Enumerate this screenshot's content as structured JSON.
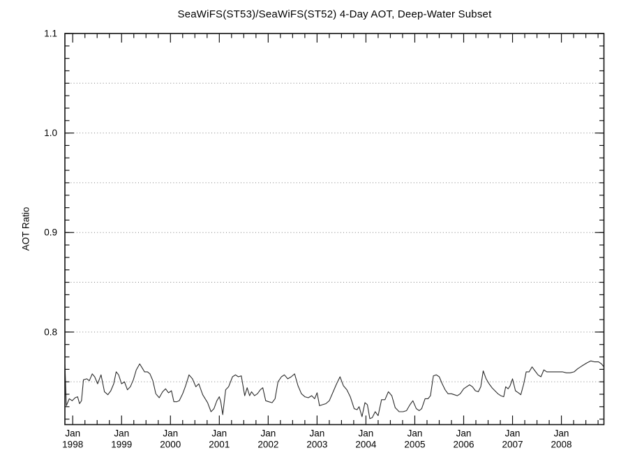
{
  "page": {
    "background": "#ffffff"
  },
  "chart_data": {
    "type": "line",
    "title": "SeaWiFS(ST53)/SeaWiFS(ST52) 4-Day AOT, Deep-Water Subset",
    "xlabel": "",
    "ylabel": "AOT Ratio",
    "xlim": [
      1997.84,
      2008.87
    ],
    "ylim": [
      0.707,
      1.1
    ],
    "legend": "none",
    "grid_style": "dotted",
    "gridlines": [
      0.75,
      0.8,
      0.85,
      0.9,
      0.95,
      1.0,
      1.05
    ],
    "y_major_ticks": [
      {
        "v": 0.8,
        "label": "0.8"
      },
      {
        "v": 0.9,
        "label": "0.9"
      },
      {
        "v": 1.0,
        "label": "1.0"
      },
      {
        "v": 1.1,
        "label": "1.1"
      }
    ],
    "y_minor_step": 0.0125,
    "x_major_ticks": [
      {
        "t": 1998,
        "line1": "Jan",
        "line2": "1998"
      },
      {
        "t": 1999,
        "line1": "Jan",
        "line2": "1999"
      },
      {
        "t": 2000,
        "line1": "Jan",
        "line2": "2000"
      },
      {
        "t": 2001,
        "line1": "Jan",
        "line2": "2001"
      },
      {
        "t": 2002,
        "line1": "Jan",
        "line2": "2002"
      },
      {
        "t": 2003,
        "line1": "Jan",
        "line2": "2003"
      },
      {
        "t": 2004,
        "line1": "Jan",
        "line2": "2004"
      },
      {
        "t": 2005,
        "line1": "Jan",
        "line2": "2005"
      },
      {
        "t": 2006,
        "line1": "Jan",
        "line2": "2006"
      },
      {
        "t": 2007,
        "line1": "Jan",
        "line2": "2007"
      },
      {
        "t": 2008,
        "line1": "Jan",
        "line2": "2008"
      }
    ],
    "x_minor_step": 0.25,
    "colors": {
      "line": "#2b2b2b",
      "axis": "#111111",
      "grid": "#7f7f7f",
      "text": "#000000",
      "background": "#ffffff"
    },
    "series": [
      {
        "name": "SeaWiFS(ST53)/SeaWiFS(ST52) 4-day AOT ratio, deep-water subset",
        "points": [
          [
            1997.84,
            0.768
          ],
          [
            1997.87,
            0.726
          ],
          [
            1997.93,
            0.733
          ],
          [
            1997.99,
            0.731
          ],
          [
            1998.05,
            0.734
          ],
          [
            1998.1,
            0.735
          ],
          [
            1998.14,
            0.728
          ],
          [
            1998.18,
            0.731
          ],
          [
            1998.22,
            0.752
          ],
          [
            1998.29,
            0.753
          ],
          [
            1998.34,
            0.751
          ],
          [
            1998.4,
            0.758
          ],
          [
            1998.45,
            0.755
          ],
          [
            1998.51,
            0.748
          ],
          [
            1998.58,
            0.757
          ],
          [
            1998.65,
            0.74
          ],
          [
            1998.72,
            0.737
          ],
          [
            1998.78,
            0.741
          ],
          [
            1998.84,
            0.748
          ],
          [
            1998.89,
            0.76
          ],
          [
            1998.94,
            0.757
          ],
          [
            1999.0,
            0.748
          ],
          [
            1999.06,
            0.75
          ],
          [
            1999.12,
            0.742
          ],
          [
            1999.18,
            0.745
          ],
          [
            1999.24,
            0.752
          ],
          [
            1999.3,
            0.762
          ],
          [
            1999.37,
            0.768
          ],
          [
            1999.42,
            0.764
          ],
          [
            1999.47,
            0.76
          ],
          [
            1999.53,
            0.76
          ],
          [
            1999.58,
            0.758
          ],
          [
            1999.64,
            0.751
          ],
          [
            1999.7,
            0.738
          ],
          [
            1999.77,
            0.734
          ],
          [
            1999.84,
            0.74
          ],
          [
            1999.9,
            0.743
          ],
          [
            1999.96,
            0.739
          ],
          [
            2000.02,
            0.741
          ],
          [
            2000.07,
            0.73
          ],
          [
            2000.13,
            0.73
          ],
          [
            2000.18,
            0.731
          ],
          [
            2000.25,
            0.738
          ],
          [
            2000.31,
            0.746
          ],
          [
            2000.38,
            0.757
          ],
          [
            2000.45,
            0.753
          ],
          [
            2000.52,
            0.745
          ],
          [
            2000.58,
            0.748
          ],
          [
            2000.66,
            0.737
          ],
          [
            2000.76,
            0.729
          ],
          [
            2000.83,
            0.72
          ],
          [
            2000.89,
            0.723
          ],
          [
            2000.95,
            0.731
          ],
          [
            2001.0,
            0.735
          ],
          [
            2001.03,
            0.73
          ],
          [
            2001.07,
            0.717
          ],
          [
            2001.13,
            0.742
          ],
          [
            2001.19,
            0.745
          ],
          [
            2001.27,
            0.755
          ],
          [
            2001.33,
            0.757
          ],
          [
            2001.39,
            0.755
          ],
          [
            2001.45,
            0.756
          ],
          [
            2001.52,
            0.736
          ],
          [
            2001.57,
            0.744
          ],
          [
            2001.62,
            0.736
          ],
          [
            2001.66,
            0.74
          ],
          [
            2001.72,
            0.736
          ],
          [
            2001.78,
            0.738
          ],
          [
            2001.84,
            0.742
          ],
          [
            2001.89,
            0.744
          ],
          [
            2001.95,
            0.731
          ],
          [
            2002.01,
            0.73
          ],
          [
            2002.08,
            0.729
          ],
          [
            2002.14,
            0.733
          ],
          [
            2002.2,
            0.75
          ],
          [
            2002.27,
            0.755
          ],
          [
            2002.33,
            0.757
          ],
          [
            2002.4,
            0.753
          ],
          [
            2002.47,
            0.755
          ],
          [
            2002.54,
            0.758
          ],
          [
            2002.61,
            0.746
          ],
          [
            2002.68,
            0.738
          ],
          [
            2002.75,
            0.735
          ],
          [
            2002.82,
            0.734
          ],
          [
            2002.89,
            0.736
          ],
          [
            2002.95,
            0.733
          ],
          [
            2003.0,
            0.739
          ],
          [
            2003.05,
            0.726
          ],
          [
            2003.11,
            0.727
          ],
          [
            2003.18,
            0.728
          ],
          [
            2003.25,
            0.731
          ],
          [
            2003.33,
            0.74
          ],
          [
            2003.4,
            0.748
          ],
          [
            2003.47,
            0.755
          ],
          [
            2003.54,
            0.746
          ],
          [
            2003.61,
            0.742
          ],
          [
            2003.68,
            0.735
          ],
          [
            2003.76,
            0.723
          ],
          [
            2003.82,
            0.722
          ],
          [
            2003.86,
            0.725
          ],
          [
            2003.92,
            0.715
          ],
          [
            2003.98,
            0.729
          ],
          [
            2004.03,
            0.727
          ],
          [
            2004.08,
            0.713
          ],
          [
            2004.13,
            0.714
          ],
          [
            2004.19,
            0.72
          ],
          [
            2004.25,
            0.716
          ],
          [
            2004.32,
            0.732
          ],
          [
            2004.39,
            0.732
          ],
          [
            2004.46,
            0.74
          ],
          [
            2004.53,
            0.736
          ],
          [
            2004.6,
            0.724
          ],
          [
            2004.68,
            0.72
          ],
          [
            2004.76,
            0.72
          ],
          [
            2004.83,
            0.721
          ],
          [
            2004.9,
            0.727
          ],
          [
            2004.96,
            0.731
          ],
          [
            2005.03,
            0.723
          ],
          [
            2005.09,
            0.721
          ],
          [
            2005.14,
            0.723
          ],
          [
            2005.21,
            0.733
          ],
          [
            2005.27,
            0.733
          ],
          [
            2005.32,
            0.736
          ],
          [
            2005.38,
            0.756
          ],
          [
            2005.44,
            0.757
          ],
          [
            2005.5,
            0.755
          ],
          [
            2005.56,
            0.748
          ],
          [
            2005.62,
            0.742
          ],
          [
            2005.68,
            0.738
          ],
          [
            2005.75,
            0.738
          ],
          [
            2005.81,
            0.737
          ],
          [
            2005.87,
            0.736
          ],
          [
            2005.93,
            0.738
          ],
          [
            2006.0,
            0.743
          ],
          [
            2006.06,
            0.745
          ],
          [
            2006.12,
            0.747
          ],
          [
            2006.18,
            0.745
          ],
          [
            2006.24,
            0.741
          ],
          [
            2006.3,
            0.74
          ],
          [
            2006.35,
            0.745
          ],
          [
            2006.4,
            0.761
          ],
          [
            2006.46,
            0.753
          ],
          [
            2006.52,
            0.748
          ],
          [
            2006.58,
            0.744
          ],
          [
            2006.64,
            0.741
          ],
          [
            2006.7,
            0.738
          ],
          [
            2006.76,
            0.736
          ],
          [
            2006.82,
            0.735
          ],
          [
            2006.86,
            0.745
          ],
          [
            2006.91,
            0.743
          ],
          [
            2006.95,
            0.746
          ],
          [
            2007.0,
            0.753
          ],
          [
            2007.06,
            0.741
          ],
          [
            2007.12,
            0.739
          ],
          [
            2007.17,
            0.737
          ],
          [
            2007.23,
            0.748
          ],
          [
            2007.28,
            0.76
          ],
          [
            2007.34,
            0.76
          ],
          [
            2007.4,
            0.765
          ],
          [
            2007.46,
            0.761
          ],
          [
            2007.52,
            0.757
          ],
          [
            2007.58,
            0.755
          ],
          [
            2007.64,
            0.762
          ],
          [
            2007.7,
            0.76
          ],
          [
            2007.79,
            0.76
          ],
          [
            2007.88,
            0.76
          ],
          [
            2007.95,
            0.76
          ],
          [
            2008.02,
            0.76
          ],
          [
            2008.1,
            0.759
          ],
          [
            2008.18,
            0.759
          ],
          [
            2008.26,
            0.76
          ],
          [
            2008.33,
            0.763
          ],
          [
            2008.42,
            0.766
          ],
          [
            2008.52,
            0.769
          ],
          [
            2008.6,
            0.771
          ],
          [
            2008.68,
            0.77
          ],
          [
            2008.76,
            0.77
          ],
          [
            2008.82,
            0.768
          ],
          [
            2008.87,
            0.765
          ]
        ]
      }
    ]
  }
}
